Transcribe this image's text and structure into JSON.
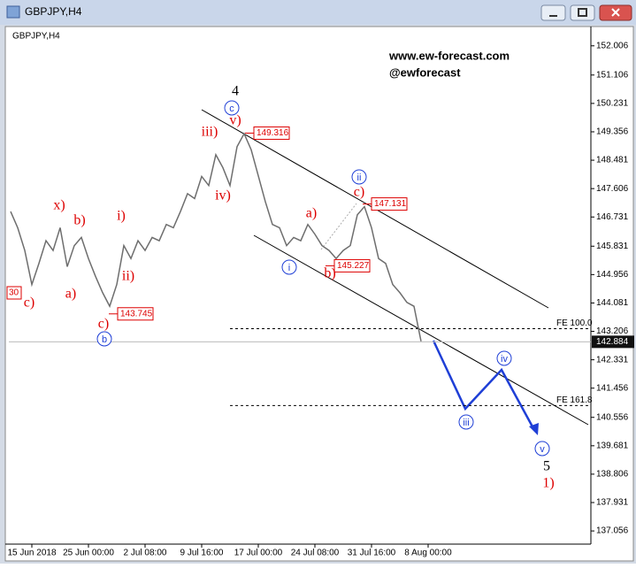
{
  "window_title": "GBPJPY,H4",
  "chart_data": {
    "type": "line",
    "title": "GBPJPY,H4",
    "watermark": [
      "www.ew-forecast.com",
      "@ewforecast"
    ],
    "x": [
      0,
      1,
      2,
      3,
      4,
      5,
      6,
      7,
      8,
      9,
      10,
      11,
      12,
      13,
      14,
      15,
      16,
      17,
      18,
      19,
      20,
      21,
      22,
      23,
      24,
      25,
      26,
      27,
      28,
      29,
      30,
      31,
      32,
      33,
      34,
      35,
      36,
      37,
      38,
      39,
      40,
      41,
      42,
      43,
      44,
      45,
      46,
      47,
      48,
      49,
      50,
      51,
      52,
      53,
      54,
      55,
      56,
      57,
      58
    ],
    "series": [
      {
        "name": "GBPJPY",
        "color": "#6e6e6e",
        "values": [
          146.9,
          146.4,
          145.7,
          144.65,
          145.3,
          146.0,
          145.7,
          146.4,
          145.2,
          145.85,
          146.1,
          145.45,
          144.9,
          144.4,
          143.98,
          144.65,
          145.85,
          145.45,
          146.0,
          145.7,
          146.1,
          146.0,
          146.5,
          146.4,
          146.9,
          147.45,
          147.3,
          147.98,
          147.7,
          148.65,
          148.25,
          147.7,
          148.9,
          149.3,
          148.8,
          148.0,
          147.2,
          146.5,
          146.4,
          145.85,
          146.1,
          146.0,
          146.5,
          146.2,
          145.85,
          145.7,
          145.45,
          145.7,
          145.85,
          146.8,
          147.05,
          146.4,
          145.45,
          145.3,
          144.65,
          144.4,
          144.1,
          143.98,
          142.9
        ]
      }
    ],
    "xlim": [
      -0.25,
      82
    ],
    "xticks": [
      {
        "value": 3,
        "label": "15 Jun 2018"
      },
      {
        "value": 11,
        "label": "25 Jun 00:00"
      },
      {
        "value": 19,
        "label": "2 Jul 08:00"
      },
      {
        "value": 27,
        "label": "9 Jul 16:00"
      },
      {
        "value": 35,
        "label": "17 Jul 00:00"
      },
      {
        "value": 43,
        "label": "24 Jul 08:00"
      },
      {
        "value": 51,
        "label": "31 Jul 16:00"
      },
      {
        "value": 59,
        "label": "8 Aug 00:00"
      }
    ],
    "ylim": [
      136.65,
      152.6
    ],
    "yticks": [
      152.006,
      151.106,
      150.231,
      149.356,
      148.481,
      147.606,
      146.731,
      145.831,
      144.956,
      144.081,
      143.206,
      142.331,
      141.456,
      140.556,
      139.681,
      138.806,
      137.931,
      137.056
    ],
    "current_price": 142.884,
    "levels": [
      {
        "value": 143.29,
        "label": "FE 100.0"
      },
      {
        "value": 140.92,
        "label": "FE 161.8"
      }
    ],
    "price_labels": [
      149.316,
      147.131,
      145.227,
      143.745
    ],
    "edge_label": "30",
    "red_waves": [
      "x)",
      "b)",
      "i)",
      "a)",
      "c)",
      "ii)",
      "c)",
      "iii)",
      "iv)",
      "v)",
      "a)",
      "c)",
      "b)",
      "1)"
    ],
    "blue_waves": [
      "c",
      "i",
      "ii",
      "b",
      "iii",
      "iv",
      "v"
    ],
    "black_waves": [
      "4",
      "5"
    ]
  }
}
